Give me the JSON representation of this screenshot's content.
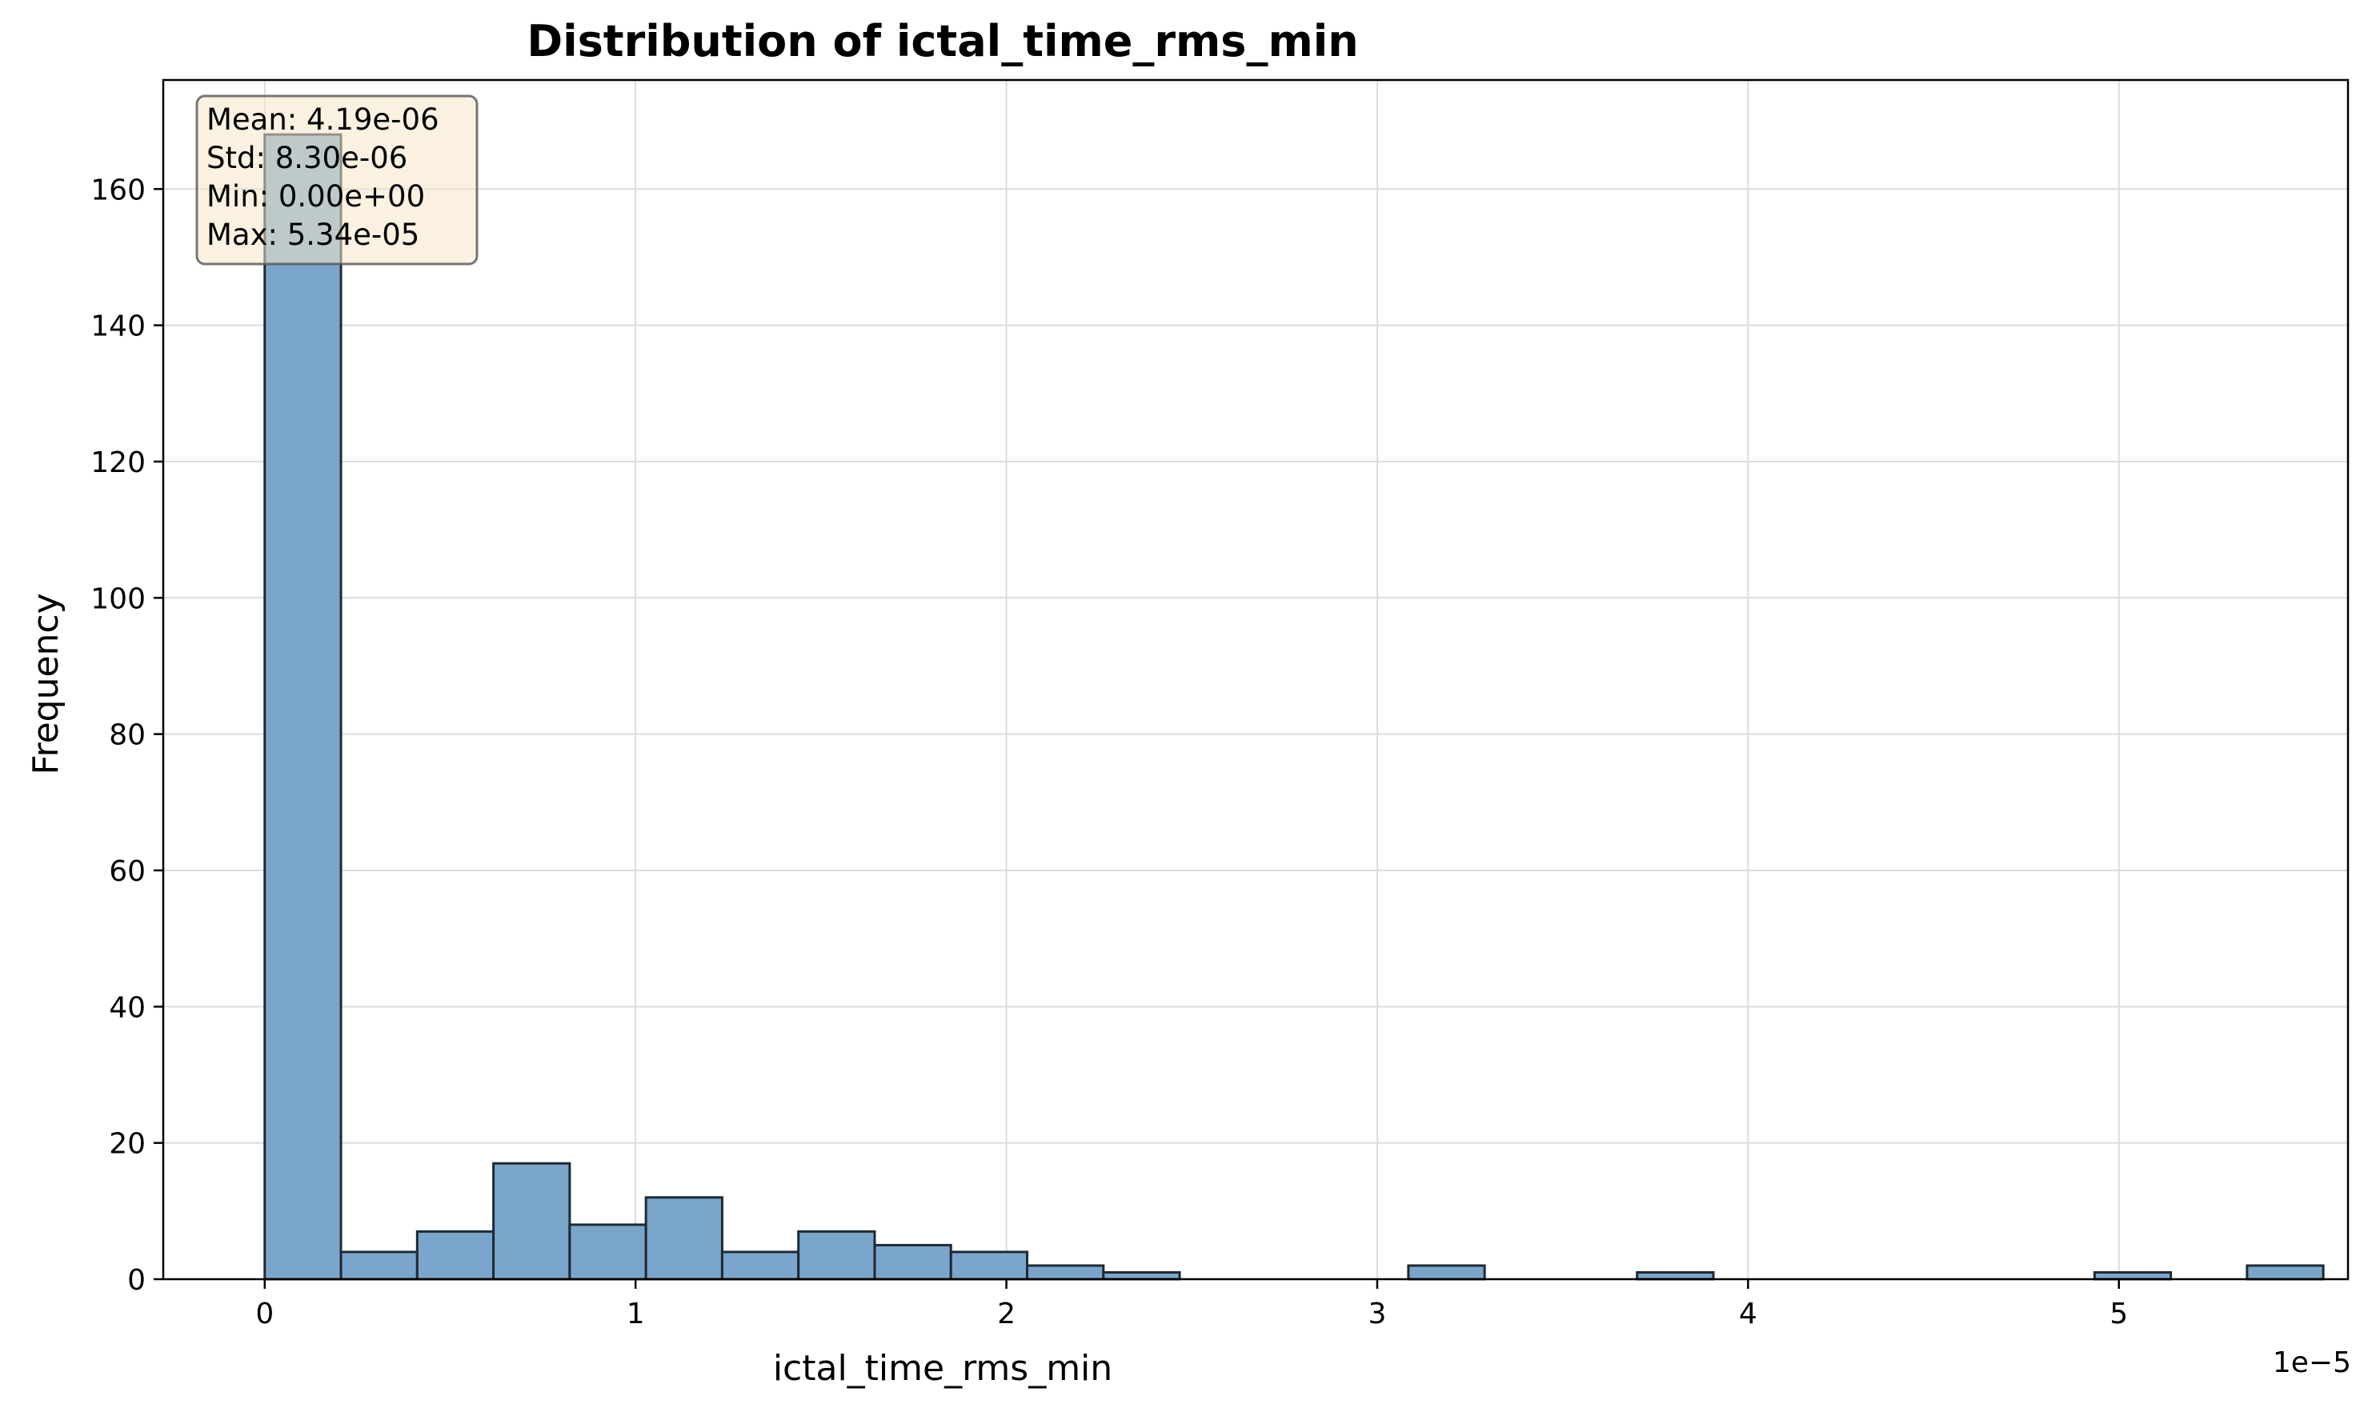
{
  "chart_data": {
    "type": "bar",
    "title": "Distribution of ictal_time_rms_min",
    "xlabel": "ictal_time_rms_min",
    "ylabel": "Frequency",
    "x_offset_label": "1e−5",
    "x_scale": 1e-05,
    "xlim": [
      -0.2736,
      5.6178
    ],
    "ylim": [
      0,
      176
    ],
    "grid": true,
    "bar_color": "#7ba6cb",
    "bar_edge_color": "#1f2a33",
    "x_ticks": [
      {
        "value": 0,
        "label": "0"
      },
      {
        "value": 1,
        "label": "1"
      },
      {
        "value": 2,
        "label": "2"
      },
      {
        "value": 3,
        "label": "3"
      },
      {
        "value": 4,
        "label": "4"
      },
      {
        "value": 5,
        "label": "5"
      }
    ],
    "y_ticks": [
      {
        "value": 0,
        "label": "0"
      },
      {
        "value": 20,
        "label": "20"
      },
      {
        "value": 40,
        "label": "40"
      },
      {
        "value": 60,
        "label": "60"
      },
      {
        "value": 80,
        "label": "80"
      },
      {
        "value": 100,
        "label": "100"
      },
      {
        "value": 120,
        "label": "120"
      },
      {
        "value": 140,
        "label": "140"
      },
      {
        "value": 160,
        "label": "160"
      }
    ],
    "bin_start": 0,
    "bin_width": 0.2056,
    "counts": [
      168,
      4,
      7,
      17,
      8,
      12,
      4,
      7,
      5,
      4,
      2,
      1,
      0,
      0,
      0,
      2,
      0,
      0,
      1,
      0,
      0,
      0,
      0,
      0,
      1,
      0,
      2
    ],
    "stats_box": {
      "lines": [
        "Mean: 4.19e-06",
        "Std: 8.30e-06",
        "Min: 0.00e+00",
        "Max: 5.34e-05"
      ],
      "background": "#f5e6c8",
      "position": "top-left"
    }
  }
}
